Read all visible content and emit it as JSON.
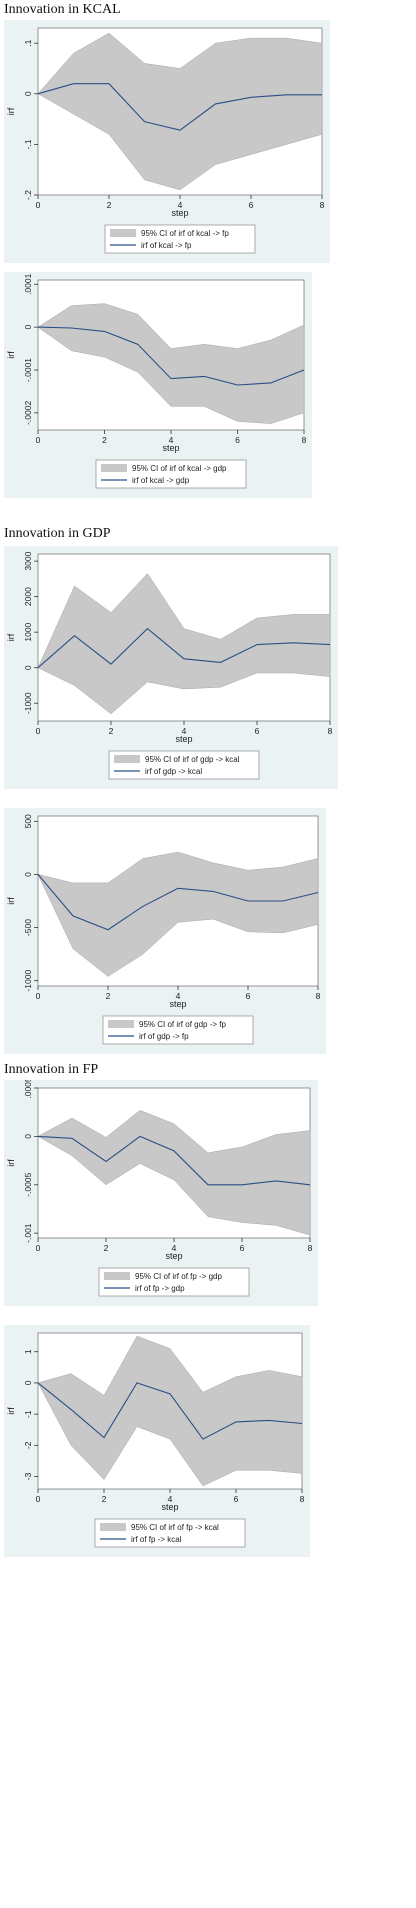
{
  "sections": [
    {
      "title": "Innovation in  KCAL"
    },
    {
      "title": "Innovation in GDP"
    },
    {
      "title": "Innovation in  FP"
    }
  ],
  "chart_data": [
    {
      "type": "area",
      "title": "",
      "xlabel": "step",
      "ylabel": "irf",
      "xlim": [
        0,
        8
      ],
      "ylim": [
        -0.2,
        0.13
      ],
      "xticks": [
        0,
        2,
        4,
        6,
        8
      ],
      "xtick_labels": [
        "0",
        "2",
        "4",
        "6",
        "8"
      ],
      "yticks": [
        -0.2,
        -0.1,
        0,
        0.1
      ],
      "ytick_labels": [
        "-.2",
        "-.1",
        "0",
        ".1"
      ],
      "x": [
        0,
        1,
        2,
        3,
        4,
        5,
        6,
        7,
        8
      ],
      "series": [
        {
          "name": "95% CI of irf of kcal -> fp",
          "lower": [
            0,
            -0.04,
            -0.08,
            -0.17,
            -0.19,
            -0.14,
            -0.12,
            -0.1,
            -0.08
          ],
          "upper": [
            0,
            0.08,
            0.12,
            0.06,
            0.05,
            0.1,
            0.11,
            0.11,
            0.1
          ]
        },
        {
          "name": "irf of kcal -> fp",
          "values": [
            0,
            0.02,
            0.02,
            -0.055,
            -0.072,
            -0.02,
            -0.007,
            -0.002,
            -0.002
          ]
        }
      ],
      "legend": [
        "95% CI of irf of kcal -> fp",
        "irf of kcal -> fp"
      ],
      "legend_position": "bottom",
      "grid": false
    },
    {
      "type": "area",
      "title": "",
      "xlabel": "step",
      "ylabel": "irf",
      "xlim": [
        0,
        8
      ],
      "ylim": [
        -0.00024,
        0.00011
      ],
      "xticks": [
        0,
        2,
        4,
        6,
        8
      ],
      "xtick_labels": [
        "0",
        "2",
        "4",
        "6",
        "8"
      ],
      "yticks": [
        -0.0002,
        -0.0001,
        0,
        0.0001
      ],
      "ytick_labels": [
        "-.0002",
        "-.0001",
        "0",
        ".0001"
      ],
      "x": [
        0,
        1,
        2,
        3,
        4,
        5,
        6,
        7,
        8
      ],
      "series": [
        {
          "name": "95% CI of irf of kcal -> gdp",
          "lower": [
            0,
            -5.5e-05,
            -7e-05,
            -0.000105,
            -0.000185,
            -0.000185,
            -0.00022,
            -0.000225,
            -0.0002
          ],
          "upper": [
            0,
            5e-05,
            5.5e-05,
            3e-05,
            -5e-05,
            -4e-05,
            -5e-05,
            -3e-05,
            5e-06
          ]
        },
        {
          "name": "irf of kcal -> gdp",
          "values": [
            0,
            -2e-06,
            -1e-05,
            -4e-05,
            -0.00012,
            -0.000115,
            -0.000135,
            -0.00013,
            -0.0001
          ]
        }
      ],
      "legend": [
        "95% CI of irf of kcal -> gdp",
        "irf of kcal -> gdp"
      ],
      "legend_position": "bottom",
      "grid": false
    },
    {
      "type": "area",
      "title": "",
      "xlabel": "step",
      "ylabel": "irf",
      "xlim": [
        0,
        8
      ],
      "ylim": [
        -1500,
        3200
      ],
      "xticks": [
        0,
        2,
        4,
        6,
        8
      ],
      "xtick_labels": [
        "0",
        "2",
        "4",
        "6",
        "8"
      ],
      "yticks": [
        -1000,
        0,
        1000,
        2000,
        3000
      ],
      "ytick_labels": [
        "-1000",
        "0",
        "1000",
        "2000",
        "3000"
      ],
      "x": [
        0,
        1,
        2,
        3,
        4,
        5,
        6,
        7,
        8
      ],
      "series": [
        {
          "name": "95% CI of irf of gdp -> kcal",
          "lower": [
            0,
            -500,
            -1300,
            -400,
            -600,
            -550,
            -150,
            -150,
            -250
          ],
          "upper": [
            0,
            2300,
            1550,
            2650,
            1100,
            800,
            1400,
            1500,
            1500
          ]
        },
        {
          "name": "irf of gdp -> kcal",
          "values": [
            0,
            900,
            100,
            1100,
            250,
            150,
            650,
            700,
            650
          ]
        }
      ],
      "legend": [
        "95% CI of irf of gdp -> kcal",
        "irf of gdp -> kcal"
      ],
      "legend_position": "bottom",
      "grid": false
    },
    {
      "type": "area",
      "title": "",
      "xlabel": "step",
      "ylabel": "irf",
      "xlim": [
        0,
        8
      ],
      "ylim": [
        -1050,
        550
      ],
      "xticks": [
        0,
        2,
        4,
        6,
        8
      ],
      "xtick_labels": [
        "0",
        "2",
        "4",
        "6",
        "8"
      ],
      "yticks": [
        -1000,
        -500,
        0,
        500
      ],
      "ytick_labels": [
        "-1000",
        "-500",
        "0",
        "500"
      ],
      "x": [
        0,
        1,
        2,
        3,
        4,
        5,
        6,
        7,
        8
      ],
      "series": [
        {
          "name": "95% CI of irf of gdp -> fp",
          "lower": [
            0,
            -700,
            -960,
            -750,
            -450,
            -420,
            -540,
            -550,
            -470
          ],
          "upper": [
            0,
            -80,
            -80,
            150,
            210,
            110,
            40,
            70,
            150
          ]
        },
        {
          "name": "irf of gdp -> fp",
          "values": [
            0,
            -390,
            -520,
            -300,
            -130,
            -160,
            -250,
            -250,
            -170
          ]
        }
      ],
      "legend": [
        "95% CI of irf of gdp -> fp",
        "irf of gdp -> fp"
      ],
      "legend_position": "bottom",
      "grid": false
    },
    {
      "type": "area",
      "title": "",
      "xlabel": "step",
      "ylabel": "irf",
      "xlim": [
        0,
        8
      ],
      "ylim": [
        -0.00105,
        0.0005
      ],
      "xticks": [
        0,
        2,
        4,
        6,
        8
      ],
      "xtick_labels": [
        "0",
        "2",
        "4",
        "6",
        "8"
      ],
      "yticks": [
        -0.001,
        -0.0005,
        0,
        0.0005
      ],
      "ytick_labels": [
        "-.001",
        "-.0005",
        "0",
        ".0005"
      ],
      "x": [
        0,
        1,
        2,
        3,
        4,
        5,
        6,
        7,
        8
      ],
      "series": [
        {
          "name": "95% CI of irf of fp -> gdp",
          "lower": [
            0,
            -0.0002,
            -0.0005,
            -0.00028,
            -0.00045,
            -0.00083,
            -0.00089,
            -0.00092,
            -0.00102
          ],
          "upper": [
            0,
            0.00019,
            -1e-05,
            0.00027,
            0.00013,
            -0.00017,
            -0.00011,
            2e-05,
            6e-05
          ]
        },
        {
          "name": "irf of fp -> gdp",
          "values": [
            0,
            -2e-05,
            -0.00026,
            0,
            -0.00015,
            -0.0005,
            -0.0005,
            -0.00046,
            -0.0005
          ]
        }
      ],
      "legend": [
        "95% CI of irf of fp -> gdp",
        "irf of fp -> gdp"
      ],
      "legend_position": "bottom",
      "grid": false
    },
    {
      "type": "area",
      "title": "",
      "xlabel": "step",
      "ylabel": "irf",
      "xlim": [
        0,
        8
      ],
      "ylim": [
        -3.4,
        1.6
      ],
      "xticks": [
        0,
        2,
        4,
        6,
        8
      ],
      "xtick_labels": [
        "0",
        "2",
        "4",
        "6",
        "8"
      ],
      "yticks": [
        -3,
        -2,
        -1,
        0,
        1
      ],
      "ytick_labels": [
        "-3",
        "-2",
        "-1",
        "0",
        "1"
      ],
      "x": [
        0,
        1,
        2,
        3,
        4,
        5,
        6,
        7,
        8
      ],
      "series": [
        {
          "name": "95% CI of irf of fp -> kcal",
          "lower": [
            0,
            -2,
            -3.1,
            -1.4,
            -1.8,
            -3.3,
            -2.8,
            -2.8,
            -2.9
          ],
          "upper": [
            0,
            0.3,
            -0.4,
            1.5,
            1.1,
            -0.3,
            0.2,
            0.4,
            0.2
          ]
        },
        {
          "name": "irf of fp -> kcal",
          "values": [
            0,
            -0.85,
            -1.75,
            0,
            -0.35,
            -1.8,
            -1.25,
            -1.2,
            -1.3
          ]
        }
      ],
      "legend": [
        "95% CI of irf of fp -> kcal",
        "irf of fp -> kcal"
      ],
      "legend_position": "bottom",
      "grid": false
    }
  ]
}
